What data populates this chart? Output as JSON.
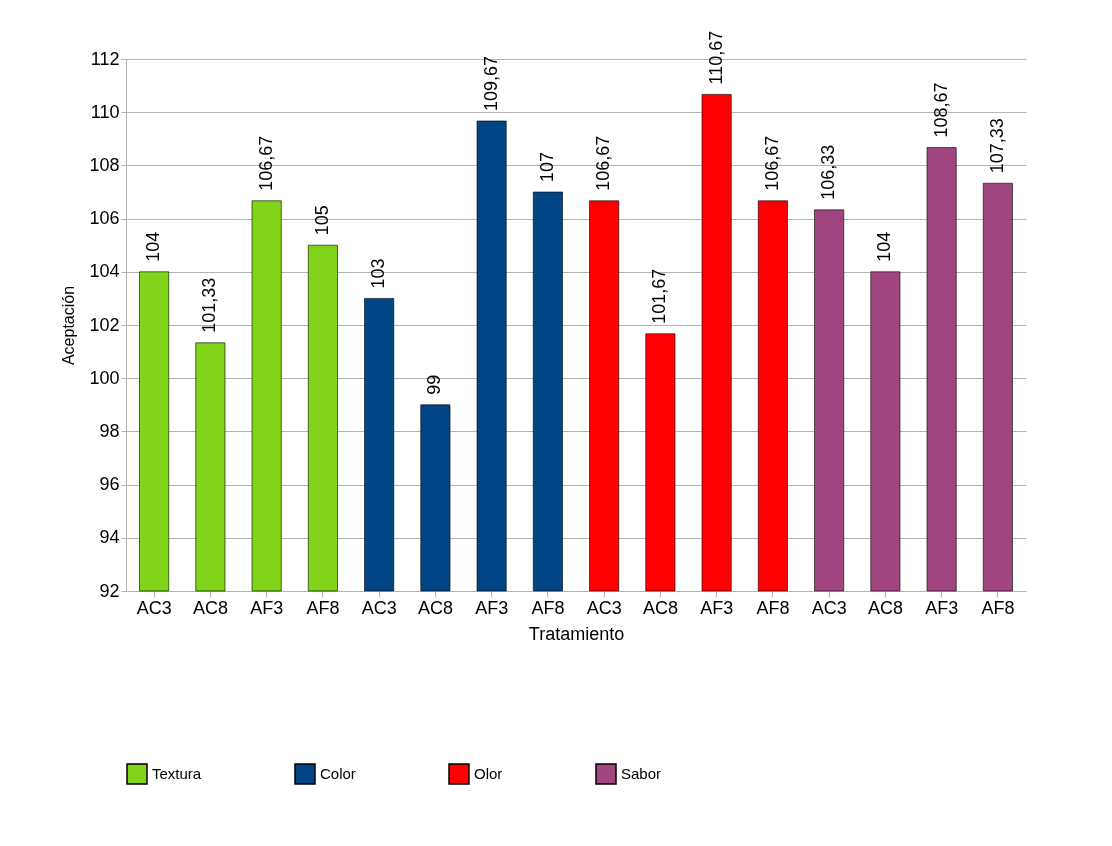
{
  "chart_data": {
    "type": "bar",
    "xlabel": "Tratamiento",
    "ylabel": "Aceptación",
    "categories": [
      "AC3",
      "AC8",
      "AF3",
      "AF8",
      "AC3",
      "AC8",
      "AF3",
      "AF8",
      "AC3",
      "AC8",
      "AF3",
      "AF8",
      "AC3",
      "AC8",
      "AF3",
      "AF8"
    ],
    "series": [
      {
        "name": "Textura",
        "color": "#81d41a",
        "values": [
          104,
          101.33,
          106.67,
          105,
          null,
          null,
          null,
          null,
          null,
          null,
          null,
          null,
          null,
          null,
          null,
          null
        ],
        "value_labels": [
          "104",
          "101,33",
          "106,67",
          "105",
          null,
          null,
          null,
          null,
          null,
          null,
          null,
          null,
          null,
          null,
          null,
          null
        ]
      },
      {
        "name": "Color",
        "color": "#004586",
        "values": [
          null,
          null,
          null,
          null,
          103,
          99,
          109.67,
          107,
          null,
          null,
          null,
          null,
          null,
          null,
          null,
          null
        ],
        "value_labels": [
          null,
          null,
          null,
          null,
          "103",
          "99",
          "109,67",
          "107",
          null,
          null,
          null,
          null,
          null,
          null,
          null,
          null
        ]
      },
      {
        "name": "Olor",
        "color": "#ff0000",
        "values": [
          null,
          null,
          null,
          null,
          null,
          null,
          null,
          null,
          106.67,
          101.67,
          110.67,
          106.67,
          null,
          null,
          null,
          null
        ],
        "value_labels": [
          null,
          null,
          null,
          null,
          null,
          null,
          null,
          null,
          "106,67",
          "101,67",
          "110,67",
          "106,67",
          null,
          null,
          null,
          null
        ]
      },
      {
        "name": "Sabor",
        "color": "#a0457e",
        "values": [
          null,
          null,
          null,
          null,
          null,
          null,
          null,
          null,
          null,
          null,
          null,
          null,
          106.33,
          104,
          108.67,
          107.33
        ],
        "value_labels": [
          null,
          null,
          null,
          null,
          null,
          null,
          null,
          null,
          null,
          null,
          null,
          null,
          "106,33",
          "104",
          "108,67",
          "107,33"
        ]
      }
    ],
    "ylim": [
      92,
      112
    ],
    "yticks": [
      92,
      94,
      96,
      98,
      100,
      102,
      104,
      106,
      108,
      110,
      112
    ],
    "grid": "y",
    "legend": "bottom"
  }
}
